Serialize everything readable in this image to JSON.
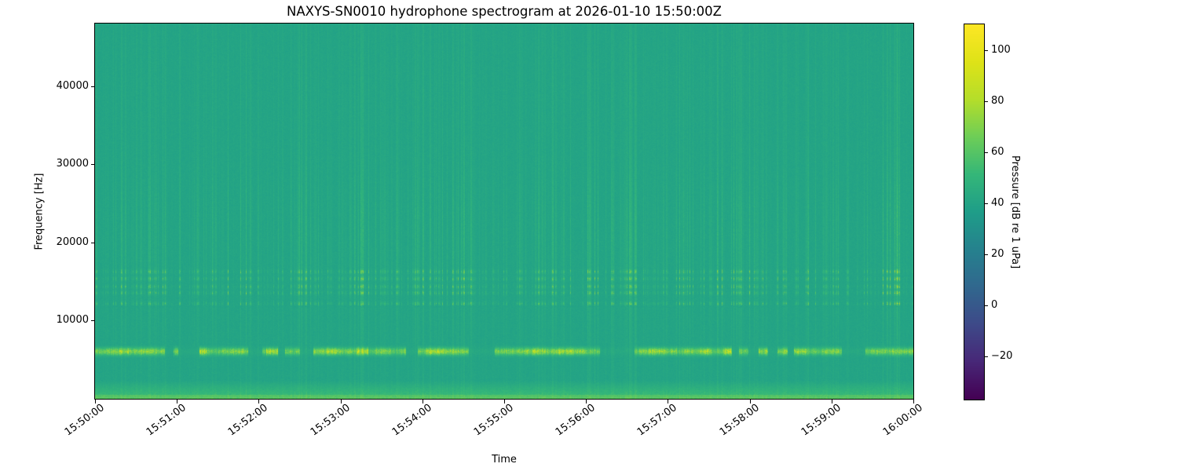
{
  "chart_data": {
    "type": "heatmap",
    "subtype": "spectrogram",
    "title": "NAXYS-SN0010 hydrophone spectrogram at 2026-01-10 15:50:00Z",
    "xlabel": "Time",
    "ylabel": "Frequency [Hz]",
    "x_ticks": [
      "15:50:00",
      "15:51:00",
      "15:52:00",
      "15:53:00",
      "15:54:00",
      "15:55:00",
      "15:56:00",
      "15:57:00",
      "15:58:00",
      "15:59:00",
      "16:00:00"
    ],
    "x_range_seconds": [
      0,
      600
    ],
    "y_ticks": [
      {
        "v": 10000,
        "label": "10000"
      },
      {
        "v": 20000,
        "label": "20000"
      },
      {
        "v": 30000,
        "label": "30000"
      },
      {
        "v": 40000,
        "label": "40000"
      }
    ],
    "y_range_hz": [
      0,
      48000
    ],
    "grid": false,
    "colorbar": {
      "label": "Pressure [dB re 1 uPa]",
      "ticks": [
        {
          "v": 100,
          "label": "100"
        },
        {
          "v": 80,
          "label": "80"
        },
        {
          "v": 60,
          "label": "60"
        },
        {
          "v": 40,
          "label": "40"
        },
        {
          "v": 20,
          "label": "20"
        },
        {
          "v": 0,
          "label": "0"
        },
        {
          "v": -20,
          "label": "−20"
        }
      ],
      "vmin": -37,
      "vmax": 110,
      "colormap": "viridis",
      "colormap_stops": [
        [
          0.0,
          "#440154"
        ],
        [
          0.1,
          "#482878"
        ],
        [
          0.2,
          "#3e4a89"
        ],
        [
          0.3,
          "#31688e"
        ],
        [
          0.4,
          "#26828e"
        ],
        [
          0.5,
          "#1f9e89"
        ],
        [
          0.6,
          "#35b779"
        ],
        [
          0.7,
          "#6ece58"
        ],
        [
          0.8,
          "#b5de2b"
        ],
        [
          0.9,
          "#dfe318"
        ],
        [
          1.0,
          "#fde725"
        ]
      ]
    },
    "features": {
      "background_db": 40,
      "vertical_striations": {
        "description": "broadband ping striations repeating every few seconds",
        "base_boost_db": 4.5,
        "emphasis_center_hz": 21000,
        "emphasis_sigma_hz": 9500,
        "emphasis_boost_db": 9,
        "high_center_hz": 40000,
        "high_sigma_hz": 6500,
        "high_boost_db": 2.5
      },
      "tonal_band": {
        "freq_hz": 6100,
        "bandwidth_hz": 900,
        "boost_db": 52,
        "pattern": "bright dashed segments"
      },
      "speckle_rows_hz": [
        12200,
        13600,
        14400,
        15400,
        16300
      ],
      "speckle_boost_db": 30,
      "dark_row": {
        "freq_hz": 11900,
        "drop_db": 18
      },
      "low_freq_edge": {
        "below_hz": 2400,
        "boost_db": 16
      }
    }
  }
}
